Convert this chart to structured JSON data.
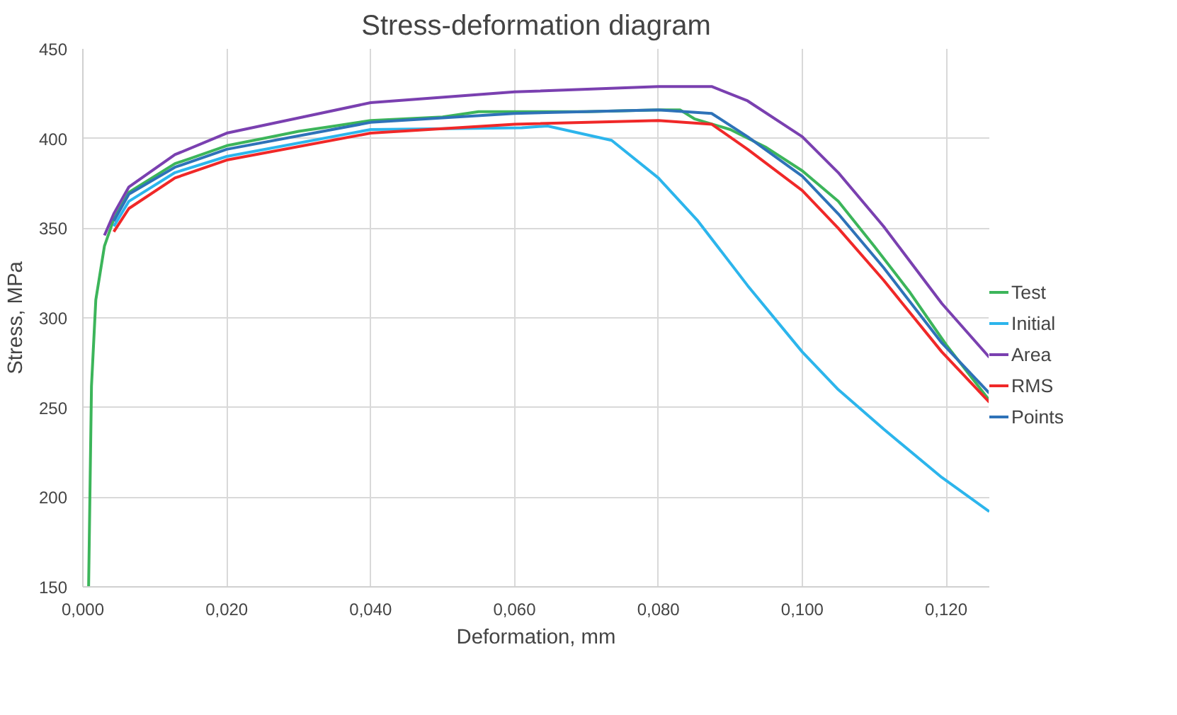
{
  "chart_data": {
    "type": "line",
    "title": "Stress-deformation diagram",
    "xlabel": "Deformation, mm",
    "ylabel": "Stress, MPa",
    "xlim": [
      0,
      0.126
    ],
    "ylim": [
      150,
      450
    ],
    "xticks": [
      {
        "value": 0,
        "label": "0,000"
      },
      {
        "value": 0.02,
        "label": "0,020"
      },
      {
        "value": 0.04,
        "label": "0,040"
      },
      {
        "value": 0.06,
        "label": "0,060"
      },
      {
        "value": 0.08,
        "label": "0,080"
      },
      {
        "value": 0.1,
        "label": "0,100"
      },
      {
        "value": 0.12,
        "label": "0,120"
      }
    ],
    "yticks": [
      150,
      200,
      250,
      300,
      350,
      400,
      450
    ],
    "grid": true,
    "legend": "right",
    "line_style": "solid",
    "marker": "none",
    "series": [
      {
        "name": "Test",
        "color": "#3cb55a",
        "x": [
          0.0008,
          0.0012,
          0.0018,
          0.003,
          0.0043,
          0.0064,
          0.0128,
          0.015,
          0.02,
          0.025,
          0.03,
          0.035,
          0.04,
          0.05,
          0.055,
          0.06,
          0.07,
          0.08,
          0.083,
          0.085,
          0.09,
          0.095,
          0.1,
          0.105,
          0.11,
          0.115,
          0.12,
          0.126
        ],
        "values": [
          150,
          262,
          310,
          340,
          355,
          370,
          386,
          389,
          396,
          400,
          404,
          407,
          410,
          412,
          415,
          415,
          415,
          416,
          416,
          411,
          405,
          395,
          382,
          365,
          340,
          314,
          285,
          254
        ]
      },
      {
        "name": "Initial",
        "color": "#2cb5ec",
        "x": [
          0.0043,
          0.0064,
          0.0128,
          0.02,
          0.04,
          0.061,
          0.0646,
          0.0735,
          0.08,
          0.0855,
          0.0924,
          0.1,
          0.105,
          0.1113,
          0.1194,
          0.126
        ],
        "values": [
          351,
          365,
          381,
          390,
          405,
          406,
          407,
          399,
          378,
          354,
          318,
          281,
          260,
          238,
          211,
          192
        ]
      },
      {
        "name": "Area",
        "color": "#7a40b0",
        "x": [
          0.003,
          0.0043,
          0.0064,
          0.0128,
          0.02,
          0.0306,
          0.04,
          0.06,
          0.08,
          0.0874,
          0.0924,
          0.1,
          0.105,
          0.1113,
          0.1194,
          0.126
        ],
        "values": [
          346,
          358,
          373,
          391,
          403,
          412,
          420,
          426,
          429,
          429,
          421,
          401,
          381,
          351,
          308,
          278
        ]
      },
      {
        "name": "RMS",
        "color": "#f02828",
        "x": [
          0.0043,
          0.0064,
          0.0128,
          0.02,
          0.04,
          0.06,
          0.08,
          0.0874,
          0.0924,
          0.1,
          0.105,
          0.1113,
          0.1194,
          0.126
        ],
        "values": [
          348,
          361,
          378,
          388,
          403,
          408,
          410,
          408,
          394,
          371,
          350,
          321,
          281,
          253
        ]
      },
      {
        "name": "Points",
        "color": "#2e72b8",
        "x": [
          0.0043,
          0.0064,
          0.0128,
          0.02,
          0.04,
          0.06,
          0.08,
          0.0874,
          0.0924,
          0.1,
          0.105,
          0.1113,
          0.1194,
          0.126
        ],
        "values": [
          354,
          369,
          384,
          394,
          409,
          414,
          416,
          414,
          401,
          379,
          358,
          328,
          286,
          258
        ]
      }
    ]
  }
}
